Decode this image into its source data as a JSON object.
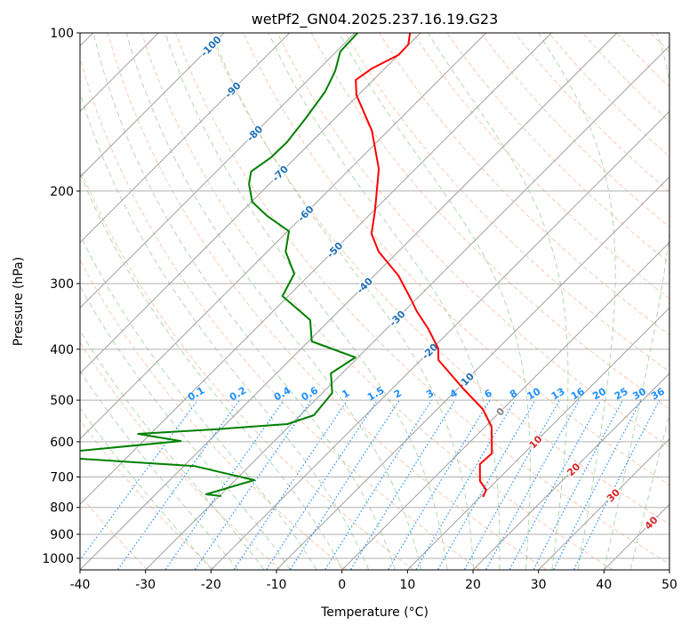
{
  "chart_data": {
    "type": "line",
    "subtype": "skew-t log-p",
    "title": "wetPf2_GN04.2025.237.16.19.G23",
    "xlabel": "Temperature (°C)",
    "ylabel": "Pressure (hPa)",
    "xlim": [
      -40,
      50
    ],
    "ylim": [
      1050,
      100
    ],
    "x_ticks": [
      -40,
      -30,
      -20,
      -10,
      0,
      10,
      20,
      30,
      40,
      50
    ],
    "y_ticks": [
      100,
      200,
      300,
      400,
      500,
      600,
      700,
      800,
      900,
      1000
    ],
    "grid": true,
    "colors": {
      "temperature": "#ff0000",
      "dewpoint": "#008000",
      "isotherm": "#a0a0a0",
      "dry_adiabat": "#f4a582",
      "moist_adiabat": "#8fc98f",
      "mixing_ratio": "#1e90ff",
      "isotherm_label_cold": "#2270b5",
      "isotherm_label_zero": "#808080",
      "isotherm_label_warm": "#d62728"
    },
    "isotherm_labels": [
      -100,
      -90,
      -80,
      -70,
      -60,
      -50,
      -40,
      -30,
      -20,
      -10,
      0,
      10,
      20,
      30,
      40
    ],
    "mixing_ratio_labels": [
      "0.1",
      "0.2",
      "0.4",
      "0.6",
      "1",
      "1.5",
      "2",
      "3",
      "4",
      "6",
      "8",
      "10",
      "13",
      "16",
      "20",
      "25",
      "30",
      "36"
    ],
    "series": [
      {
        "name": "Temperature",
        "pressure": [
          100,
          105.2,
          110.2,
          116.9,
          122.9,
          131.3,
          153.5,
          181.5,
          218.0,
          241.2,
          260.8,
          289.7,
          323.1,
          338.5,
          366.0,
          398.8,
          419.5,
          475.2,
          519.6,
          561.8,
          604.9,
          631.4,
          661.6,
          712.5,
          740.9,
          764.2
        ],
        "temperature": [
          -71.6,
          -70.1,
          -70.0,
          -72.0,
          -72.7,
          -70.3,
          -62.5,
          -55.6,
          -49.8,
          -46.8,
          -43.0,
          -36.3,
          -30.5,
          -28.1,
          -23.6,
          -19.1,
          -17.3,
          -9.2,
          -3.1,
          1.0,
          3.6,
          5.1,
          4.9,
          7.5,
          9.8,
          10.4
        ]
      },
      {
        "name": "Dewpoint",
        "pressure": [
          100,
          108.5,
          118.2,
          129.3,
          145.4,
          161.5,
          172.5,
          183.6,
          194.0,
          209.7,
          223.2,
          238.5,
          260.8,
          287.4,
          316.8,
          352.0,
          386.5,
          414.6,
          444.6,
          484.5,
          534.1,
          555.3,
          568.4,
          579.6,
          598.1,
          624.2,
          634.0,
          646.3,
          667.4,
          709.7,
          755.3,
          761.2
        ],
        "temperature": [
          -79.6,
          -79.4,
          -77.2,
          -75.6,
          -74.5,
          -73.7,
          -73.8,
          -74.7,
          -73.1,
          -69.9,
          -65.4,
          -59.8,
          -57.2,
          -52.5,
          -50.9,
          -43.0,
          -39.5,
          -30.4,
          -31.7,
          -28.5,
          -27.9,
          -30.6,
          -41.0,
          -51.9,
          -44.3,
          -58.2,
          -60.4,
          -57.0,
          -38.4,
          -27.1,
          -32.3,
          -29.7
        ]
      }
    ]
  }
}
